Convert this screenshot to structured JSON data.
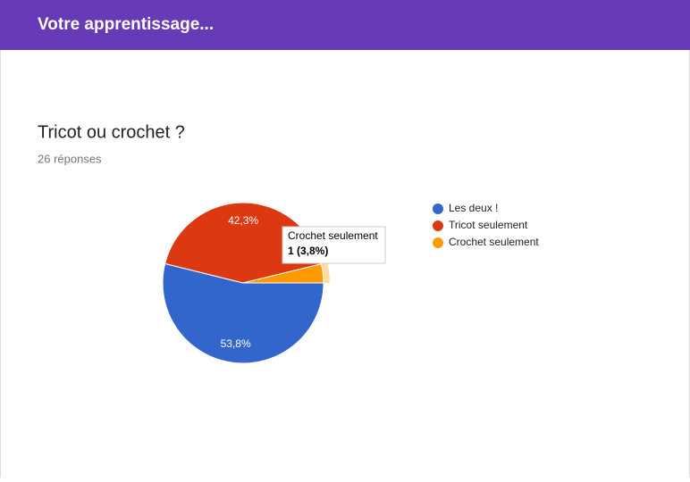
{
  "header": {
    "title": "Votre apprentissage..."
  },
  "chart_data": {
    "type": "pie",
    "title": "Tricot ou crochet ?",
    "subtitle": "26 réponses",
    "categories": [
      "Les deux !",
      "Tricot seulement",
      "Crochet seulement"
    ],
    "values": [
      53.8,
      42.3,
      3.8
    ],
    "value_labels": [
      "53,8%",
      "42,3%",
      null
    ],
    "colors": [
      "#3366cc",
      "#dc3912",
      "#ff9900"
    ],
    "legend": "right",
    "tooltip": {
      "text": "1 (3,8%)"
    }
  }
}
